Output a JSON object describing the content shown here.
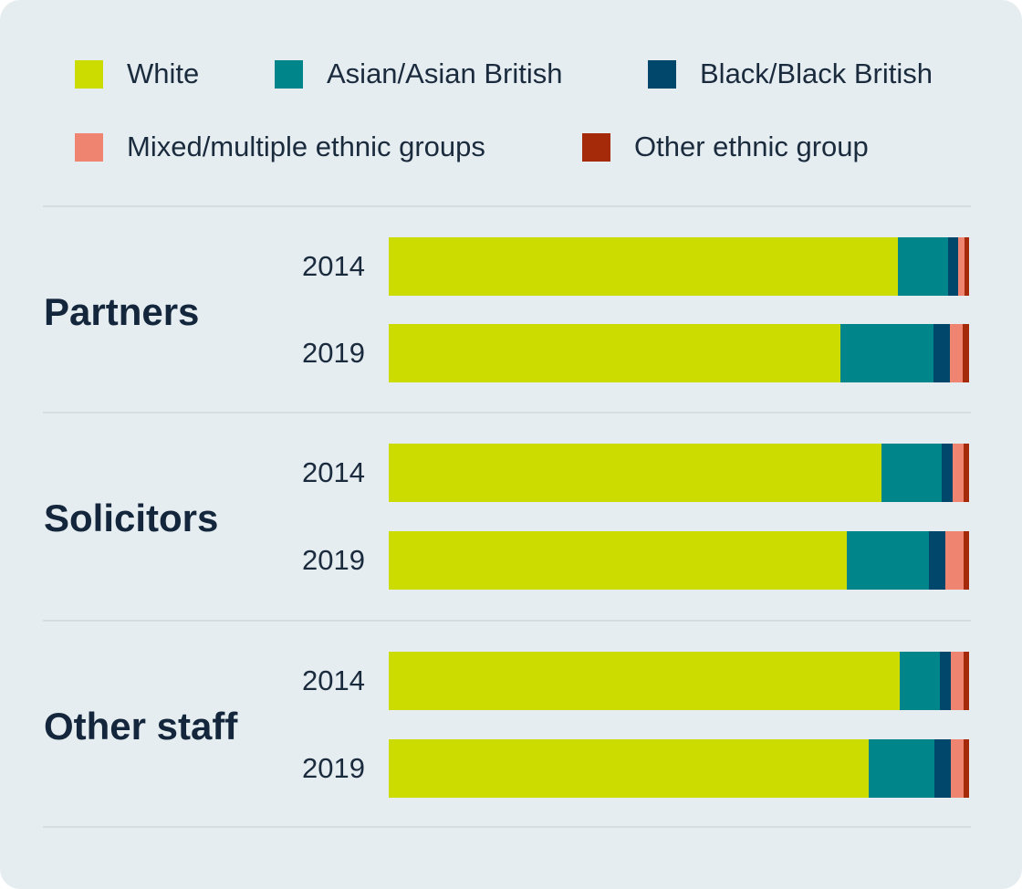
{
  "legend": [
    {
      "key": "white",
      "label": "White",
      "color": "#cddc00"
    },
    {
      "key": "asian",
      "label": "Asian/Asian British",
      "color": "#00868a"
    },
    {
      "key": "black",
      "label": "Black/Black British",
      "color": "#00476b"
    },
    {
      "key": "mixed",
      "label": "Mixed/multiple ethnic groups",
      "color": "#ef8470"
    },
    {
      "key": "other",
      "label": "Other ethnic group",
      "color": "#a52a0a"
    }
  ],
  "chart_data": {
    "type": "bar",
    "stacked": true,
    "orientation": "horizontal",
    "unit": "percent",
    "series_order": [
      "White",
      "Asian/Asian British",
      "Black/Black British",
      "Mixed/multiple ethnic groups",
      "Other ethnic group"
    ],
    "groups": [
      {
        "label": "Partners",
        "rows": [
          {
            "year": "2014",
            "values": [
              87.7,
              8.6,
              1.7,
              1.1,
              0.9
            ]
          },
          {
            "year": "2019",
            "values": [
              77.8,
              16.1,
              2.8,
              2.2,
              1.1
            ]
          }
        ]
      },
      {
        "label": "Solicitors",
        "rows": [
          {
            "year": "2014",
            "values": [
              84.9,
              10.4,
              1.9,
              1.9,
              0.9
            ]
          },
          {
            "year": "2019",
            "values": [
              78.9,
              14.2,
              2.8,
              3.1,
              1.0
            ]
          }
        ]
      },
      {
        "label": "Other staff",
        "rows": [
          {
            "year": "2014",
            "values": [
              88.1,
              6.9,
              1.9,
              2.2,
              0.9
            ]
          },
          {
            "year": "2019",
            "values": [
              82.7,
              11.3,
              2.8,
              2.2,
              1.0
            ]
          }
        ]
      }
    ]
  }
}
